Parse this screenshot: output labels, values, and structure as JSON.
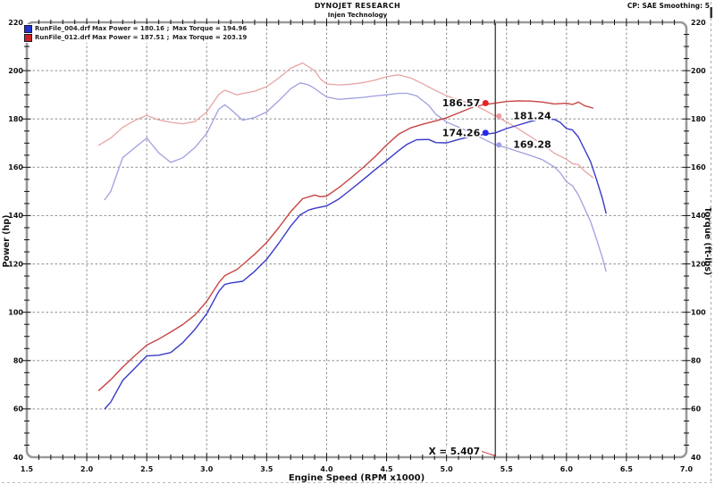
{
  "header": {
    "title": "DYNOJET RESEARCH",
    "subtitle": "Injen Technology",
    "right_note": "CP: SAE  Smoothing: 5"
  },
  "legend": {
    "rows": [
      {
        "color": "#2233cc",
        "file": "RunFile_004.drf",
        "power_label": "Max Power = 180.16",
        "separator": ";",
        "torque_label": "Max Torque = 194.96"
      },
      {
        "color": "#cc2222",
        "file": "RunFile_012.drf",
        "power_label": "Max Power = 187.51",
        "separator": ";",
        "torque_label": "Max Torque = 203.19"
      }
    ]
  },
  "chart_data": {
    "type": "line",
    "title": "DYNOJET RESEARCH - Injen Technology",
    "grid": true,
    "x_axis": {
      "label": "Engine Speed (RPM x1000)",
      "min": 1.5,
      "max": 7.0,
      "major_step": 0.5,
      "minor_step": 0.1,
      "tick_labels": [
        "1.5",
        "2.0",
        "2.5",
        "3.0",
        "3.5",
        "4.0",
        "4.5",
        "5.0",
        "5.5",
        "6.0",
        "6.5",
        "7.0"
      ]
    },
    "y_axis_left": {
      "label": "Power (hp)",
      "min": 40,
      "max": 220,
      "major_step": 20,
      "minor_step": 5,
      "tick_labels": [
        "40",
        "60",
        "80",
        "100",
        "120",
        "140",
        "160",
        "180",
        "200",
        "220"
      ]
    },
    "y_axis_right": {
      "label": "Torque (ft-lbs)",
      "min": 40,
      "max": 220,
      "major_step": 20,
      "minor_step": 5,
      "tick_labels": [
        "40",
        "60",
        "80",
        "100",
        "120",
        "140",
        "160",
        "180",
        "200",
        "220"
      ]
    },
    "series": [
      {
        "id": "runfile004-power",
        "name": "RunFile_004.drf Power",
        "unit": "hp",
        "color": "#3a3ac8",
        "width": 1.4,
        "points": [
          [
            2.15,
            60.0
          ],
          [
            2.2,
            62.8
          ],
          [
            2.3,
            71.8
          ],
          [
            2.4,
            76.8
          ],
          [
            2.5,
            81.9
          ],
          [
            2.6,
            82.2
          ],
          [
            2.7,
            83.3
          ],
          [
            2.8,
            87.4
          ],
          [
            2.9,
            92.8
          ],
          [
            3.0,
            99.4
          ],
          [
            3.1,
            108.6
          ],
          [
            3.15,
            111.5
          ],
          [
            3.2,
            112.1
          ],
          [
            3.3,
            112.8
          ],
          [
            3.4,
            116.9
          ],
          [
            3.5,
            121.9
          ],
          [
            3.6,
            128.5
          ],
          [
            3.7,
            135.6
          ],
          [
            3.78,
            140.3
          ],
          [
            3.85,
            142.3
          ],
          [
            3.9,
            143.0
          ],
          [
            4.0,
            144.0
          ],
          [
            4.1,
            146.8
          ],
          [
            4.2,
            150.7
          ],
          [
            4.3,
            154.7
          ],
          [
            4.4,
            158.8
          ],
          [
            4.5,
            162.8
          ],
          [
            4.6,
            166.9
          ],
          [
            4.67,
            169.5
          ],
          [
            4.75,
            171.4
          ],
          [
            4.85,
            171.5
          ],
          [
            4.91,
            170.2
          ],
          [
            5.0,
            170.1
          ],
          [
            5.1,
            171.5
          ],
          [
            5.2,
            172.8
          ],
          [
            5.3,
            173.5
          ],
          [
            5.407,
            174.26
          ],
          [
            5.5,
            176.0
          ],
          [
            5.6,
            177.5
          ],
          [
            5.7,
            179.0
          ],
          [
            5.8,
            180.16
          ],
          [
            5.9,
            179.8
          ],
          [
            5.95,
            178.5
          ],
          [
            6.0,
            176.0
          ],
          [
            6.05,
            175.5
          ],
          [
            6.1,
            172.5
          ],
          [
            6.2,
            162.4
          ],
          [
            6.25,
            155.0
          ],
          [
            6.3,
            147.0
          ],
          [
            6.33,
            141.0
          ]
        ]
      },
      {
        "id": "runfile004-torque",
        "name": "RunFile_004.drf Torque",
        "unit": "ft-lbs",
        "color": "#9f9fe0",
        "width": 1.3,
        "points": [
          [
            2.15,
            146.6
          ],
          [
            2.2,
            150.0
          ],
          [
            2.3,
            164.0
          ],
          [
            2.4,
            168.1
          ],
          [
            2.5,
            172.1
          ],
          [
            2.6,
            166.0
          ],
          [
            2.7,
            162.0
          ],
          [
            2.8,
            163.9
          ],
          [
            2.9,
            168.1
          ],
          [
            3.0,
            174.0
          ],
          [
            3.1,
            184.0
          ],
          [
            3.15,
            185.9
          ],
          [
            3.2,
            184.0
          ],
          [
            3.3,
            179.5
          ],
          [
            3.4,
            180.6
          ],
          [
            3.5,
            182.9
          ],
          [
            3.6,
            187.5
          ],
          [
            3.7,
            192.5
          ],
          [
            3.78,
            194.96
          ],
          [
            3.85,
            194.1
          ],
          [
            3.9,
            192.6
          ],
          [
            4.0,
            189.1
          ],
          [
            4.1,
            188.1
          ],
          [
            4.2,
            188.5
          ],
          [
            4.3,
            188.9
          ],
          [
            4.4,
            189.5
          ],
          [
            4.5,
            190.0
          ],
          [
            4.6,
            190.6
          ],
          [
            4.67,
            190.6
          ],
          [
            4.75,
            189.6
          ],
          [
            4.85,
            185.7
          ],
          [
            4.91,
            182.0
          ],
          [
            5.0,
            178.7
          ],
          [
            5.1,
            176.6
          ],
          [
            5.2,
            174.5
          ],
          [
            5.3,
            171.9
          ],
          [
            5.407,
            169.28
          ],
          [
            5.5,
            168.1
          ],
          [
            5.6,
            166.5
          ],
          [
            5.7,
            164.9
          ],
          [
            5.8,
            163.1
          ],
          [
            5.9,
            160.1
          ],
          [
            5.95,
            157.6
          ],
          [
            6.0,
            154.0
          ],
          [
            6.05,
            152.4
          ],
          [
            6.1,
            148.5
          ],
          [
            6.2,
            137.6
          ],
          [
            6.25,
            130.3
          ],
          [
            6.3,
            122.5
          ],
          [
            6.33,
            117.0
          ]
        ]
      },
      {
        "id": "runfile012-power",
        "name": "RunFile_012.drf Power",
        "unit": "hp",
        "color": "#c84444",
        "width": 1.4,
        "points": [
          [
            2.1,
            67.6
          ],
          [
            2.2,
            72.1
          ],
          [
            2.3,
            77.3
          ],
          [
            2.4,
            82.0
          ],
          [
            2.5,
            86.4
          ],
          [
            2.6,
            88.9
          ],
          [
            2.7,
            91.8
          ],
          [
            2.8,
            94.9
          ],
          [
            2.9,
            98.8
          ],
          [
            3.0,
            104.5
          ],
          [
            3.1,
            112.2
          ],
          [
            3.15,
            115.1
          ],
          [
            3.2,
            116.4
          ],
          [
            3.25,
            117.6
          ],
          [
            3.3,
            119.7
          ],
          [
            3.4,
            124.0
          ],
          [
            3.5,
            128.9
          ],
          [
            3.6,
            135.0
          ],
          [
            3.7,
            141.6
          ],
          [
            3.8,
            147.0
          ],
          [
            3.9,
            148.5
          ],
          [
            3.95,
            147.8
          ],
          [
            4.0,
            148.1
          ],
          [
            4.1,
            151.5
          ],
          [
            4.2,
            155.5
          ],
          [
            4.3,
            159.7
          ],
          [
            4.4,
            164.2
          ],
          [
            4.5,
            169.2
          ],
          [
            4.6,
            173.7
          ],
          [
            4.7,
            176.3
          ],
          [
            4.8,
            177.8
          ],
          [
            4.9,
            179.1
          ],
          [
            5.0,
            180.5
          ],
          [
            5.1,
            182.5
          ],
          [
            5.2,
            184.5
          ],
          [
            5.3,
            185.8
          ],
          [
            5.407,
            186.57
          ],
          [
            5.5,
            187.2
          ],
          [
            5.6,
            187.51
          ],
          [
            5.7,
            187.4
          ],
          [
            5.8,
            187.0
          ],
          [
            5.9,
            186.2
          ],
          [
            6.0,
            186.5
          ],
          [
            6.05,
            186.0
          ],
          [
            6.1,
            187.0
          ],
          [
            6.15,
            185.5
          ],
          [
            6.22,
            184.5
          ]
        ]
      },
      {
        "id": "runfile012-torque",
        "name": "RunFile_012.drf Torque",
        "unit": "ft-lbs",
        "color": "#e8a4a4",
        "width": 1.3,
        "points": [
          [
            2.1,
            169.1
          ],
          [
            2.2,
            172.1
          ],
          [
            2.3,
            176.5
          ],
          [
            2.4,
            179.4
          ],
          [
            2.5,
            181.5
          ],
          [
            2.6,
            179.6
          ],
          [
            2.7,
            178.6
          ],
          [
            2.8,
            178.0
          ],
          [
            2.9,
            178.9
          ],
          [
            3.0,
            182.9
          ],
          [
            3.1,
            190.1
          ],
          [
            3.15,
            191.9
          ],
          [
            3.2,
            191.0
          ],
          [
            3.25,
            190.0
          ],
          [
            3.3,
            190.5
          ],
          [
            3.4,
            191.5
          ],
          [
            3.5,
            193.4
          ],
          [
            3.6,
            196.9
          ],
          [
            3.7,
            201.0
          ],
          [
            3.8,
            203.19
          ],
          [
            3.9,
            200.0
          ],
          [
            3.95,
            196.5
          ],
          [
            4.0,
            194.5
          ],
          [
            4.1,
            194.1
          ],
          [
            4.2,
            194.4
          ],
          [
            4.3,
            195.0
          ],
          [
            4.4,
            196.0
          ],
          [
            4.5,
            197.5
          ],
          [
            4.6,
            198.3
          ],
          [
            4.7,
            197.0
          ],
          [
            4.8,
            194.6
          ],
          [
            4.9,
            192.0
          ],
          [
            5.0,
            189.6
          ],
          [
            5.1,
            187.9
          ],
          [
            5.2,
            186.3
          ],
          [
            5.3,
            184.1
          ],
          [
            5.407,
            181.24
          ],
          [
            5.5,
            178.8
          ],
          [
            5.6,
            175.9
          ],
          [
            5.7,
            172.7
          ],
          [
            5.8,
            169.4
          ],
          [
            5.9,
            165.8
          ],
          [
            6.0,
            163.3
          ],
          [
            6.05,
            161.5
          ],
          [
            6.1,
            161.1
          ],
          [
            6.15,
            158.5
          ],
          [
            6.22,
            155.8
          ]
        ]
      }
    ],
    "cursor": {
      "x": 5.407,
      "label": "X = 5.407",
      "line_color": "#444444",
      "leader_color": "#cc4444"
    },
    "markers": [
      {
        "label": "186.57",
        "value": 186.57,
        "series": "runfile012-power",
        "side": "left",
        "color": "#e82020"
      },
      {
        "label": "181.24",
        "value": 181.24,
        "series": "runfile012-torque",
        "side": "right",
        "color": "#f09c9c"
      },
      {
        "label": "174.26",
        "value": 174.26,
        "series": "runfile004-power",
        "side": "left",
        "color": "#2828e8"
      },
      {
        "label": "169.28",
        "value": 169.28,
        "series": "runfile004-torque",
        "side": "right",
        "color": "#9f9ff0"
      }
    ],
    "frame_color": "#999999",
    "grid_color": "#999999"
  }
}
